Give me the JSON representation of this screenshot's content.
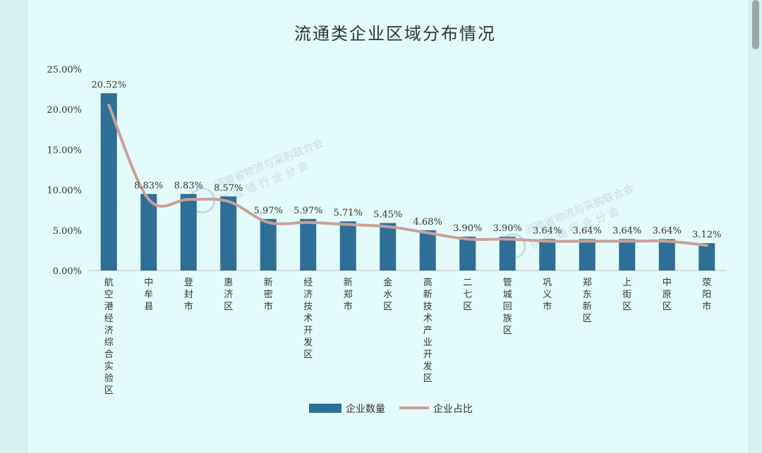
{
  "chart_data": {
    "type": "bar",
    "title": "流通类企业区域分布情况",
    "categories": [
      "航空港经济综合实验区",
      "中牟县",
      "登封市",
      "惠济区",
      "新密市",
      "经济技术开发区",
      "新郑市",
      "金水区",
      "高新技术产业开发区",
      "二七区",
      "管城回族区",
      "巩义市",
      "郑东新区",
      "上街区",
      "中原区",
      "荥阳市"
    ],
    "series": [
      {
        "name": "企业数量",
        "kind": "bar",
        "values": [
          22.0,
          9.5,
          9.5,
          9.2,
          6.4,
          6.4,
          6.1,
          5.9,
          5.0,
          4.2,
          4.2,
          3.9,
          3.9,
          3.9,
          3.9,
          3.4
        ]
      },
      {
        "name": "企业占比",
        "kind": "line",
        "values": [
          20.52,
          8.83,
          8.83,
          8.57,
          5.97,
          5.97,
          5.71,
          5.45,
          4.68,
          3.9,
          3.9,
          3.64,
          3.64,
          3.64,
          3.64,
          3.12
        ]
      }
    ],
    "data_labels": [
      "20.52%",
      "8.83%",
      "8.83%",
      "8.57%",
      "5.97%",
      "5.97%",
      "5.71%",
      "5.45%",
      "4.68%",
      "3.90%",
      "3.90%",
      "3.64%",
      "3.64%",
      "3.64%",
      "3.64%",
      "3.12%"
    ],
    "y_ticks": [
      "0.00%",
      "5.00%",
      "10.00%",
      "15.00%",
      "20.00%",
      "25.00%"
    ],
    "ylim": [
      0,
      25
    ],
    "legend_position": "bottom",
    "grid": false,
    "colors": {
      "bar": "#2e6f98",
      "line": "#c9a098",
      "background": "#e4fbfb",
      "text": "#333333"
    }
  },
  "watermark": {
    "line1": "河南省物流与采购联合会",
    "line2": "供 应 链 行 业 分 会"
  }
}
